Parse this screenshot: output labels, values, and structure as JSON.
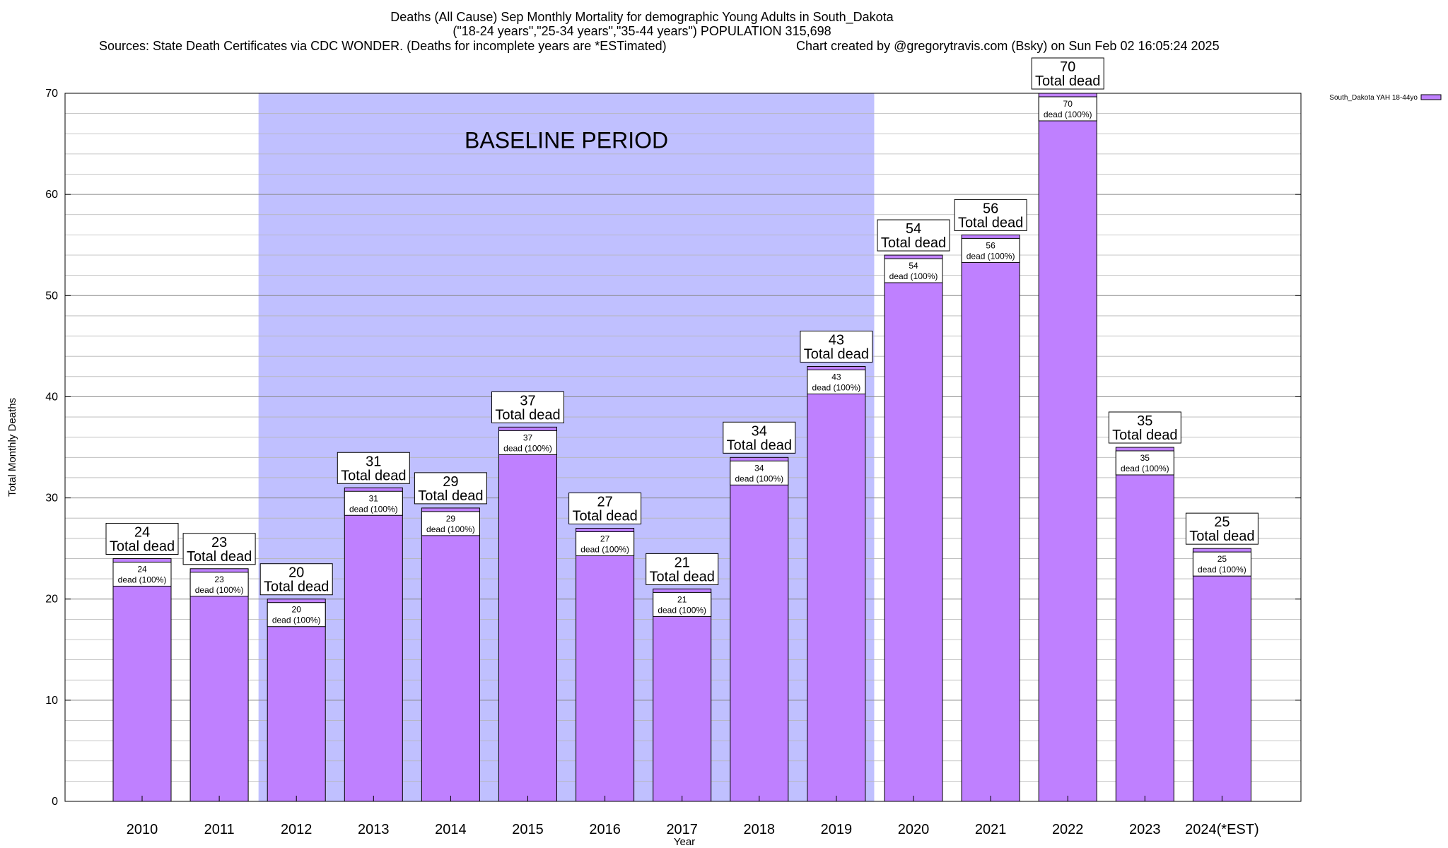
{
  "chart_data": {
    "type": "bar",
    "title": "Deaths (All Cause) Sep Monthly Mortality for demographic Young Adults in South_Dakota",
    "subtitle": "(\"18-24 years\",\"25-34 years\",\"35-44 years\") POPULATION 315,698",
    "sources": "Sources: State Death Certificates via CDC WONDER. (Deaths for incomplete years are *ESTimated)",
    "credit": "Chart created by @gregorytravis.com (Bsky) on Sun Feb 02 16:05:24 2025",
    "xlabel": "Year",
    "ylabel": "Total Monthly Deaths",
    "ylim": [
      0,
      70
    ],
    "yticks": [
      0,
      10,
      20,
      30,
      40,
      50,
      60,
      70
    ],
    "grid": true,
    "legend_position": "top-right",
    "baseline": {
      "label": "BASELINE PERIOD",
      "from": "2012",
      "to": "2019"
    },
    "categories": [
      "2010",
      "2011",
      "2012",
      "2013",
      "2014",
      "2015",
      "2016",
      "2017",
      "2018",
      "2019",
      "2020",
      "2021",
      "2022",
      "2023",
      "2024(*EST)"
    ],
    "series": [
      {
        "name": "South_Dakota YAH 18-44yo",
        "values": [
          24,
          23,
          20,
          31,
          29,
          37,
          27,
          21,
          34,
          43,
          54,
          56,
          70,
          35,
          25
        ]
      }
    ],
    "total_label_text": "Total dead",
    "inner_label_text": "dead (100%)",
    "colors": {
      "bar": "#bf80ff",
      "baseline": "#c0c0ff",
      "grid": "#a0a0a0"
    }
  }
}
